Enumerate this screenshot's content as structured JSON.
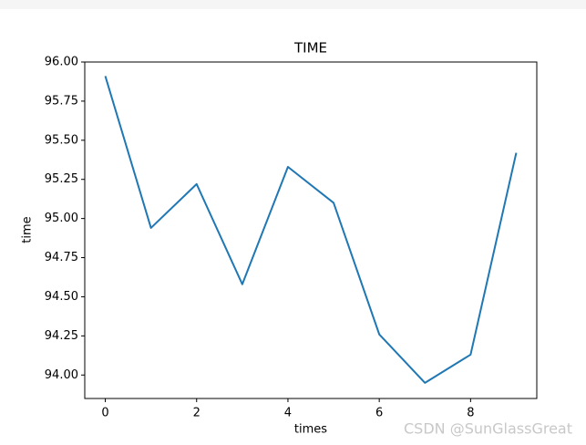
{
  "chart_data": {
    "type": "line",
    "title": "TIME",
    "x_label": "times",
    "y_label": "time",
    "x": [
      0,
      1,
      2,
      3,
      4,
      5,
      6,
      7,
      8,
      9
    ],
    "values": [
      95.91,
      94.94,
      95.22,
      94.58,
      95.33,
      95.1,
      94.26,
      93.95,
      94.13,
      95.42
    ],
    "color": "#1f77b4",
    "xlim": [
      -0.45,
      9.45
    ],
    "xticks": [
      0,
      2,
      4,
      6,
      8
    ],
    "ylim": [
      93.85,
      96.0
    ],
    "yticks": [
      {
        "value": 94,
        "label": "94.00"
      },
      {
        "value": 94.25,
        "label": "94.25"
      },
      {
        "value": 94.5,
        "label": "94.50"
      },
      {
        "value": 94.75,
        "label": "94.75"
      },
      {
        "value": 95,
        "label": "95.00"
      },
      {
        "value": 95.25,
        "label": "95.25"
      },
      {
        "value": 95.5,
        "label": "95.50"
      },
      {
        "value": 95.75,
        "label": "95.75"
      },
      {
        "value": 96,
        "label": "96.00"
      }
    ],
    "grid": false,
    "watermark": "CSDN @SunGlassGreat"
  }
}
